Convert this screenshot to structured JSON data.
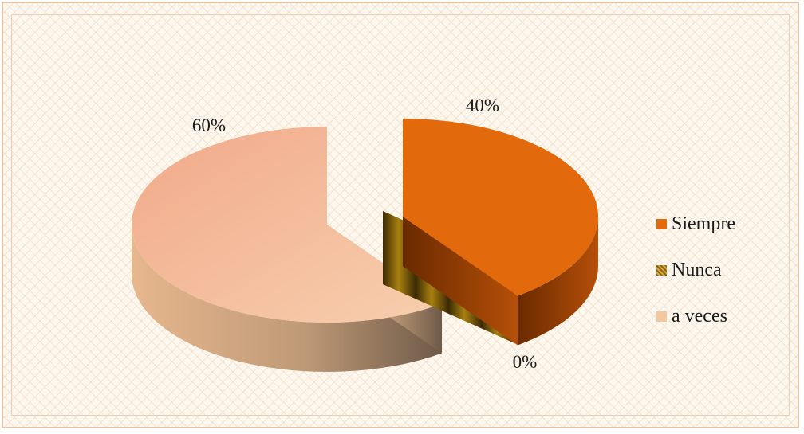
{
  "chart_data": {
    "type": "pie",
    "title": "",
    "categories": [
      "Siempre",
      "Nunca",
      "a veces"
    ],
    "values": [
      40,
      0,
      60
    ],
    "data_labels": [
      "40%",
      "0%",
      "60%"
    ],
    "colors": [
      "#e36a0c",
      "#9a7214",
      "#f3c7a0"
    ],
    "legend_position": "right",
    "style": "3D exploded pie"
  }
}
